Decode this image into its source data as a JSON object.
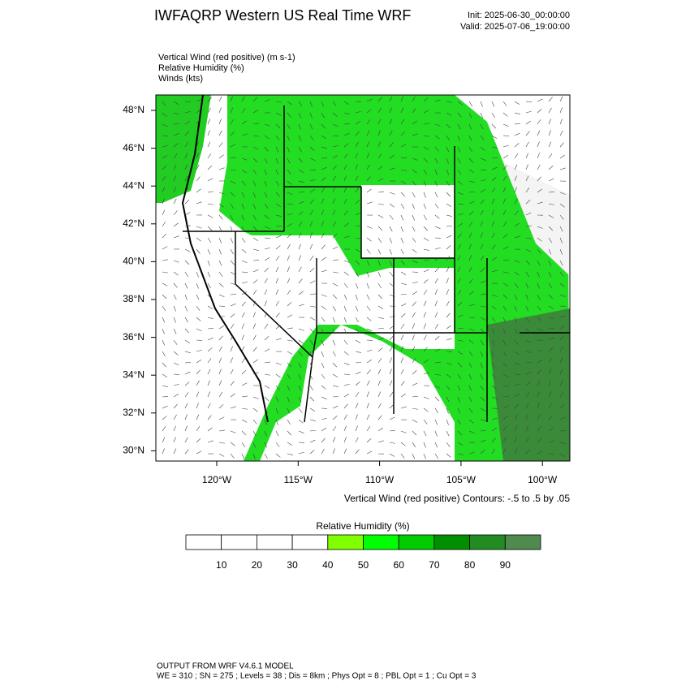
{
  "header": {
    "title": "IWFAQRP Western US Real Time WRF",
    "init": "Init: 2025-06-30_00:00:00",
    "valid": "Valid: 2025-07-06_19:00:00"
  },
  "fields": [
    "Vertical Wind (red positive)   (m s-1)",
    "Relative Humidity   (%)",
    "Winds   (kts)"
  ],
  "lat_labels": [
    "48°N",
    "46°N",
    "44°N",
    "42°N",
    "40°N",
    "38°N",
    "36°N",
    "34°N",
    "32°N",
    "30°N"
  ],
  "lon_labels": [
    "120°W",
    "115°W",
    "110°W",
    "105°W",
    "100°W"
  ],
  "contour_note": "Vertical Wind (red positive) Contours: -.5 to .5 by .05",
  "colorbar": {
    "title": "Relative Humidity   (%)",
    "ticks": [
      10,
      20,
      30,
      40,
      50,
      60,
      70,
      80,
      90
    ],
    "colors": [
      "#ffffff",
      "#ffffff",
      "#ffffff",
      "#ffffff",
      "#80ff00",
      "#00ff00",
      "#00cc00",
      "#008f00",
      "#228b22",
      "#4f8a4f"
    ]
  },
  "footer": [
    "OUTPUT FROM WRF V4.6.1 MODEL",
    "WE = 310 ; SN = 275 ; Levels = 38 ; Dis = 8km ; Phys Opt = 8 ; PBL Opt = 1 ; Cu Opt = 3"
  ]
}
